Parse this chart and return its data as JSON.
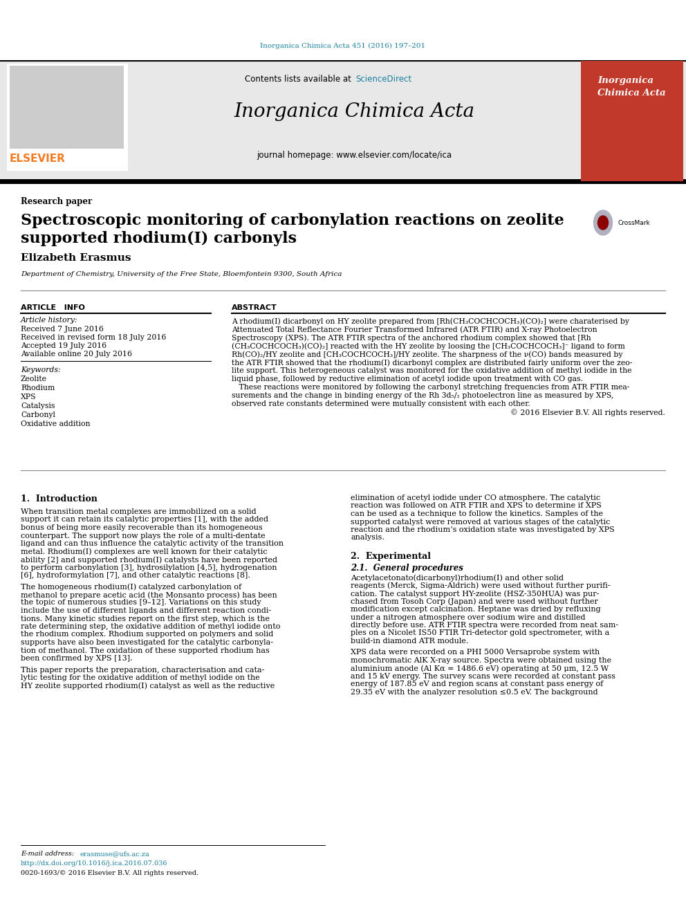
{
  "background_color": "#ffffff",
  "journal_ref_color": "#1a7fa0",
  "journal_ref": "Inorganica Chimica Acta 451 (2016) 197–201",
  "header_bg": "#e8e8e8",
  "elsevier_color": "#f47920",
  "journal_title": "Inorganica Chimica Acta",
  "journal_homepage": "journal homepage: www.elsevier.com/locate/ica",
  "contents_text": "Contents lists available at ",
  "sciencedirect_text": "ScienceDirect",
  "sciencedirect_color": "#1a7fa0",
  "section_label": "Research paper",
  "paper_title_line1": "Spectroscopic monitoring of carbonylation reactions on zeolite",
  "paper_title_line2": "supported rhodium(I) carbonyls",
  "author": "Elizabeth Erasmus",
  "affiliation": "Department of Chemistry, University of the Free State, Bloemfontein 9300, South Africa",
  "article_info_header": "ARTICLE   INFO",
  "abstract_header": "ABSTRACT",
  "article_history_label": "Article history:",
  "received1": "Received 7 June 2016",
  "received2": "Received in revised form 18 July 2016",
  "accepted": "Accepted 19 July 2016",
  "available": "Available online 20 July 2016",
  "keywords_label": "Keywords:",
  "keywords": [
    "Zeolite",
    "Rhodium",
    "XPS",
    "Catalysis",
    "Carbonyl",
    "Oxidative addition"
  ],
  "abstract_lines": [
    "A rhodium(I) dicarbonyl on HY zeolite prepared from [Rh(CH₃COCHCOCH₃)(CO)₂] were charaterised by",
    "Attenuated Total Reflectance Fourier Transformed Infrared (ATR FTIR) and X-ray Photoelectron",
    "Spectroscopy (XPS). The ATR FTIR spectra of the anchored rhodium complex showed that [Rh",
    "(CH₃COCHCOCH₃)(CO)₂] reacted with the HY zeolite by loosing the [CH₃COCHCOCH₃]⁻ ligand to form",
    "Rh(CO)₂/HY zeolite and [CH₃COCHCOCH₃]/HY zeolite. The sharpness of the ν(CO) bands measured by",
    "the ATR FTIR showed that the rhodium(I) dicarbonyl complex are distributed fairly uniform over the zeo-",
    "lite support. This heterogeneous catalyst was monitored for the oxidative addition of methyl iodide in the",
    "liquid phase, followed by reductive elimination of acetyl iodide upon treatment with CO gas.",
    "   These reactions were monitored by following the carbonyl stretching frequencies from ATR FTIR mea-",
    "surements and the change in binding energy of the Rh 3d₅/₂ photoelectron line as measured by XPS,",
    "observed rate constants determined were mutually consistent with each other.",
    "© 2016 Elsevier B.V. All rights reserved."
  ],
  "intro_header": "1.  Introduction",
  "intro1_lines": [
    "When transition metal complexes are immobilized on a solid",
    "support it can retain its catalytic properties [1], with the added",
    "bonus of being more easily recoverable than its homogeneous",
    "counterpart. The support now plays the role of a multi-dentate",
    "ligand and can thus influence the catalytic activity of the transition",
    "metal. Rhodium(I) complexes are well known for their catalytic",
    "ability [2] and supported rhodium(I) catalysts have been reported",
    "to perform carbonylation [3], hydrosilylation [4,5], hydrogenation",
    "[6], hydroformylation [7], and other catalytic reactions [8]."
  ],
  "intro2_lines": [
    "The homogeneous rhodium(I) catalyzed carbonylation of",
    "methanol to prepare acetic acid (the Monsanto process) has been",
    "the topic of numerous studies [9–12]. Variations on this study",
    "include the use of different ligands and different reaction condi-",
    "tions. Many kinetic studies report on the first step, which is the",
    "rate determining step, the oxidative addition of methyl iodide onto",
    "the rhodium complex. Rhodium supported on polymers and solid",
    "supports have also been investigated for the catalytic carbonyla-",
    "tion of methanol. The oxidation of these supported rhodium has",
    "been confirmed by XPS [13]."
  ],
  "intro3_lines": [
    "This paper reports the preparation, characterisation and cata-",
    "lytic testing for the oxidative addition of methyl iodide on the",
    "HY zeolite supported rhodium(I) catalyst as well as the reductive"
  ],
  "right_intro_lines": [
    "elimination of acetyl iodide under CO atmosphere. The catalytic",
    "reaction was followed on ATR FTIR and XPS to determine if XPS",
    "can be used as a technique to follow the kinetics. Samples of the",
    "supported catalyst were removed at various stages of the catalytic",
    "reaction and the rhodium’s oxidation state was investigated by XPS",
    "analysis."
  ],
  "experimental_header": "2.  Experimental",
  "gen_proc_header": "2.1.  General procedures",
  "gen_proc1_lines": [
    "Acetylacetonato(dicarbonyl)rhodium(I) and other solid",
    "reagents (Merck, Sigma-Aldrich) were used without further purifi-",
    "cation. The catalyst support HY-zeolite (HSZ-350HUA) was pur-",
    "chased from Tosoh Corp (Japan) and were used without further",
    "modification except calcination. Heptane was dried by refluxing",
    "under a nitrogen atmosphere over sodium wire and distilled",
    "directly before use. ATR FTIR spectra were recorded from neat sam-",
    "ples on a Nicolet IS50 FTIR Tri-detector gold spectrometer, with a",
    "build-in diamond ATR module."
  ],
  "gen_proc2_lines": [
    "XPS data were recorded on a PHI 5000 Versaprobe system with",
    "monochromatic AlK X-ray source. Spectra were obtained using the",
    "aluminium anode (Al Kα = 1486.6 eV) operating at 50 μm, 12.5 W",
    "and 15 kV energy. The survey scans were recorded at constant pass",
    "energy of 187.85 eV and region scans at constant pass energy of",
    "29.35 eV with the analyzer resolution ≤0.5 eV. The background"
  ],
  "email_label": "E-mail address: ",
  "email_text": "erasmuse@ufs.ac.za",
  "doi_text": "http://dx.doi.org/10.1016/j.ica.2016.07.036",
  "copyright_text": "0020-1693/© 2016 Elsevier B.V. All rights reserved.",
  "cover_title_line1": "Inorganica",
  "cover_title_line2": "Chimica Acta",
  "cover_bg": "#c0392b"
}
